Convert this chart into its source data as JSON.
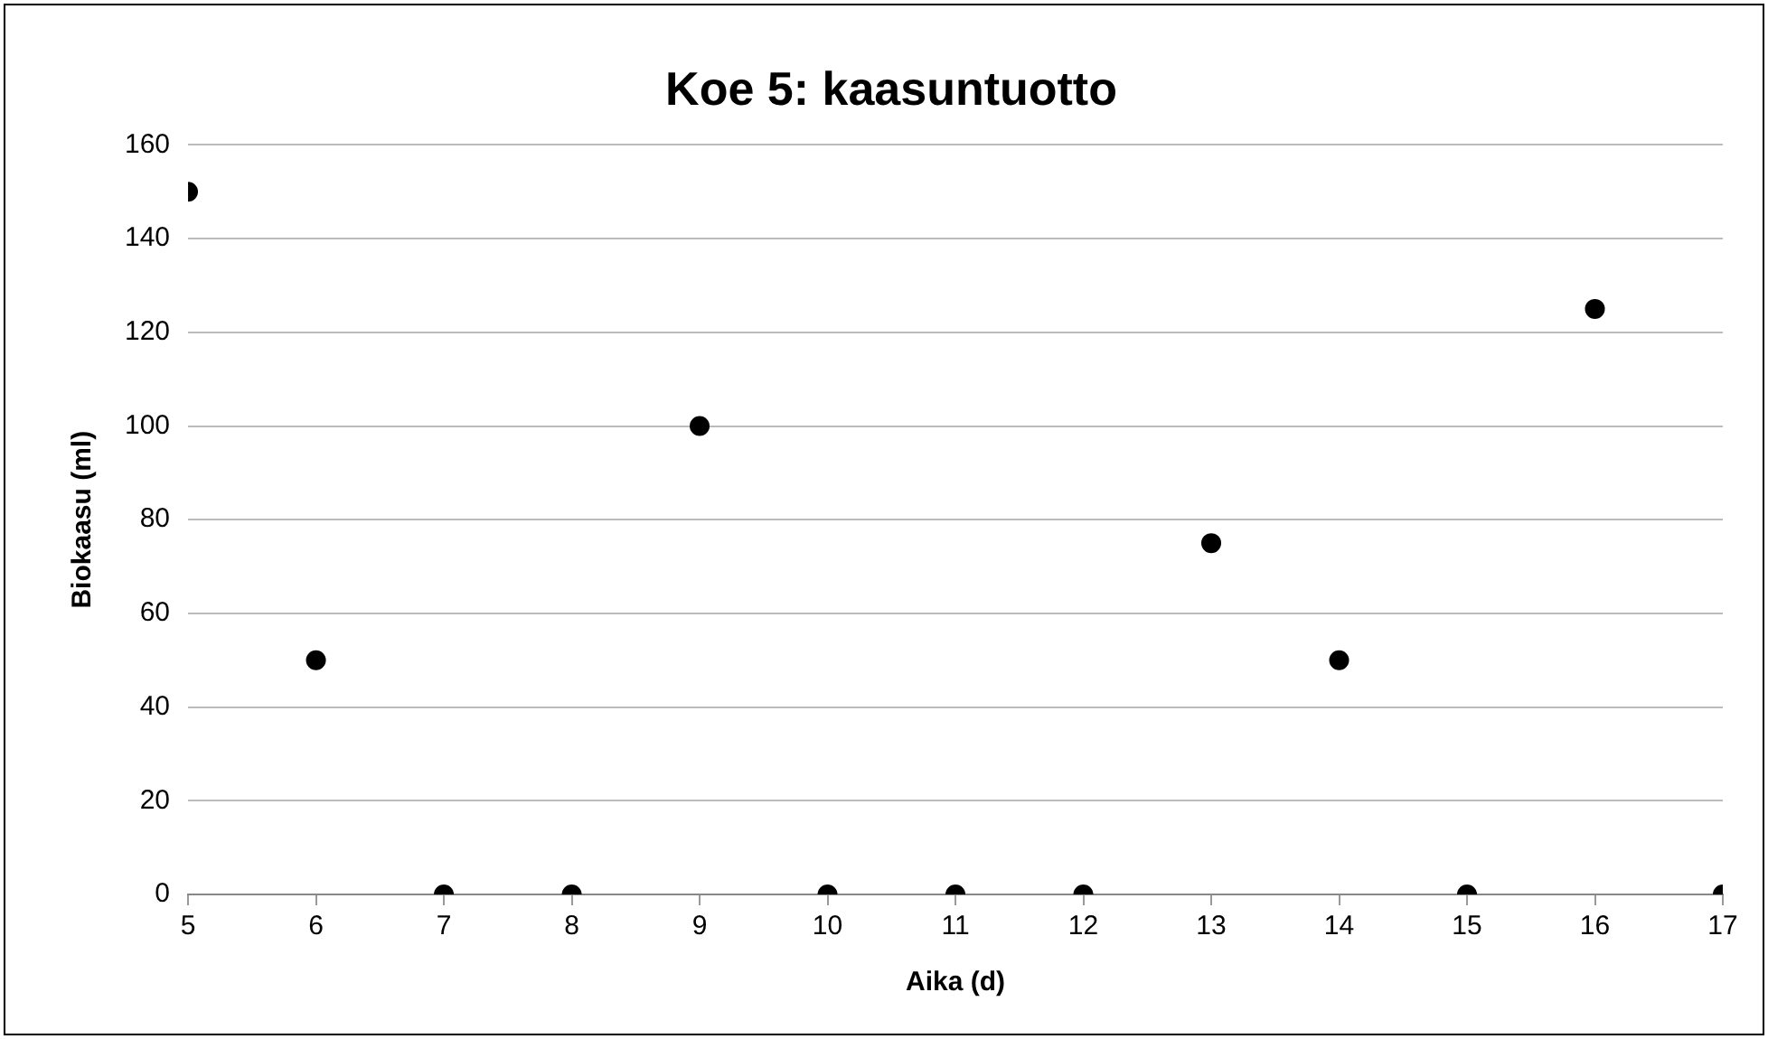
{
  "chart_data": {
    "type": "scatter",
    "title": "Koe 5: kaasuntuotto",
    "xlabel": "Aika (d)",
    "ylabel": "Biokaasu (ml)",
    "x": [
      5,
      6,
      7,
      8,
      9,
      10,
      11,
      12,
      13,
      14,
      15,
      16,
      17
    ],
    "series": [
      {
        "color": "#000000",
        "values": [
          150,
          50,
          0,
          0,
          100,
          0,
          0,
          0,
          75,
          50,
          0,
          125,
          0
        ]
      }
    ],
    "xlim": [
      5,
      17
    ],
    "xticks": [
      5,
      6,
      7,
      8,
      9,
      10,
      11,
      12,
      13,
      14,
      15,
      16,
      17
    ],
    "ylim": [
      0,
      160
    ],
    "yticks": [
      0,
      20,
      40,
      60,
      80,
      100,
      120,
      140,
      160
    ],
    "grid": "y",
    "legend": false,
    "marker": "circle"
  }
}
